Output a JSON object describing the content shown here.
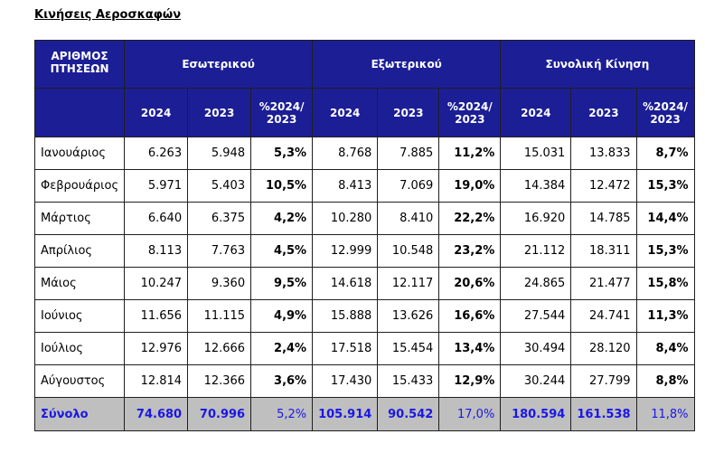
{
  "title": "Κινήσεις Αεροσκαφών",
  "header": {
    "corner": "ΑΡΙΘΜΟΣ ΠΤΗΣΕΩΝ",
    "groups": [
      "Εσωτερικού",
      "Εξωτερικού",
      "Συνολική Κίνηση"
    ],
    "sub": [
      "2024",
      "2023",
      "%2024/ 2023"
    ]
  },
  "rows": [
    {
      "month": "Ιανουάριος",
      "v": [
        "6.263",
        "5.948",
        "5,3%",
        "8.768",
        "7.885",
        "11,2%",
        "15.031",
        "13.833",
        "8,7%"
      ]
    },
    {
      "month": "Φεβρουάριος",
      "v": [
        "5.971",
        "5.403",
        "10,5%",
        "8.413",
        "7.069",
        "19,0%",
        "14.384",
        "12.472",
        "15,3%"
      ]
    },
    {
      "month": "Μάρτιος",
      "v": [
        "6.640",
        "6.375",
        "4,2%",
        "10.280",
        "8.410",
        "22,2%",
        "16.920",
        "14.785",
        "14,4%"
      ]
    },
    {
      "month": "Απρίλιος",
      "v": [
        "8.113",
        "7.763",
        "4,5%",
        "12.999",
        "10.548",
        "23,2%",
        "21.112",
        "18.311",
        "15,3%"
      ]
    },
    {
      "month": "Μάιος",
      "v": [
        "10.247",
        "9.360",
        "9,5%",
        "14.618",
        "12.117",
        "20,6%",
        "24.865",
        "21.477",
        "15,8%"
      ]
    },
    {
      "month": "Ιούνιος",
      "v": [
        "11.656",
        "11.115",
        "4,9%",
        "15.888",
        "13.626",
        "16,6%",
        "27.544",
        "24.741",
        "11,3%"
      ]
    },
    {
      "month": "Ιούλιος",
      "v": [
        "12.976",
        "12.666",
        "2,4%",
        "17.518",
        "15.454",
        "13,4%",
        "30.494",
        "28.120",
        "8,4%"
      ]
    },
    {
      "month": "Αύγουστος",
      "v": [
        "12.814",
        "12.366",
        "3,6%",
        "17.430",
        "15.433",
        "12,9%",
        "30.244",
        "27.799",
        "8,8%"
      ]
    }
  ],
  "total": {
    "label": "Σύνολο",
    "v": [
      "74.680",
      "70.996",
      "5,2%",
      "105.914",
      "90.542",
      "17,0%",
      "180.594",
      "161.538",
      "11,8%"
    ]
  },
  "colors": {
    "header_bg": "#1c1e96",
    "header_text": "#ffffff",
    "total_bg": "#bfbfbf",
    "total_text": "#1a16e6"
  }
}
